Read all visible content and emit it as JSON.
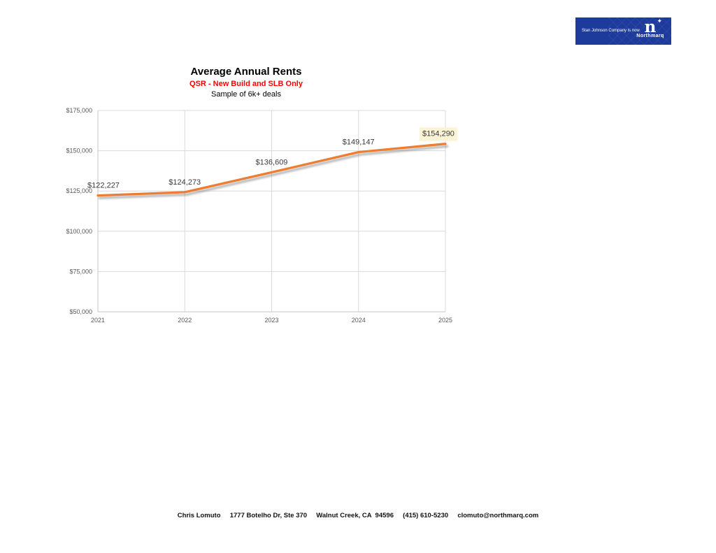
{
  "logo": {
    "tagline": "Stan Johnson Company is now",
    "monogram": "n",
    "star": "✦",
    "brand": "Northmarq",
    "bg_color": "#1d3b9b"
  },
  "chart_data": {
    "type": "line",
    "title": "Average Annual Rents",
    "subtitle": "QSR - New Build and SLB Only",
    "subtitle2": "Sample of 6k+ deals",
    "subtitle_color": "#FF0000",
    "categories": [
      "2021",
      "2022",
      "2023",
      "2024",
      "2025"
    ],
    "values": [
      122227,
      124273,
      136609,
      149147,
      154290
    ],
    "data_labels": [
      "$122,227",
      "$124,273",
      "$136,609",
      "$149,147",
      "$154,290"
    ],
    "highlighted_label_index": 4,
    "ylim": [
      50000,
      175000
    ],
    "ytick_step": 25000,
    "ytick_labels": [
      "$50,000",
      "$75,000",
      "$100,000",
      "$125,000",
      "$150,000",
      "$175,000"
    ],
    "grid": true,
    "legend": "none",
    "line_color": "#ED7D31",
    "grid_color": "#D9D9D9",
    "axis_color": "#C6C6C6",
    "highlight_color": "#FBF3D5"
  },
  "footer": {
    "text": "Chris Lomuto     1777 Botelho Dr, Ste 370     Walnut Creek, CA  94596     (415) 610-5230     clomuto@northmarq.com"
  }
}
